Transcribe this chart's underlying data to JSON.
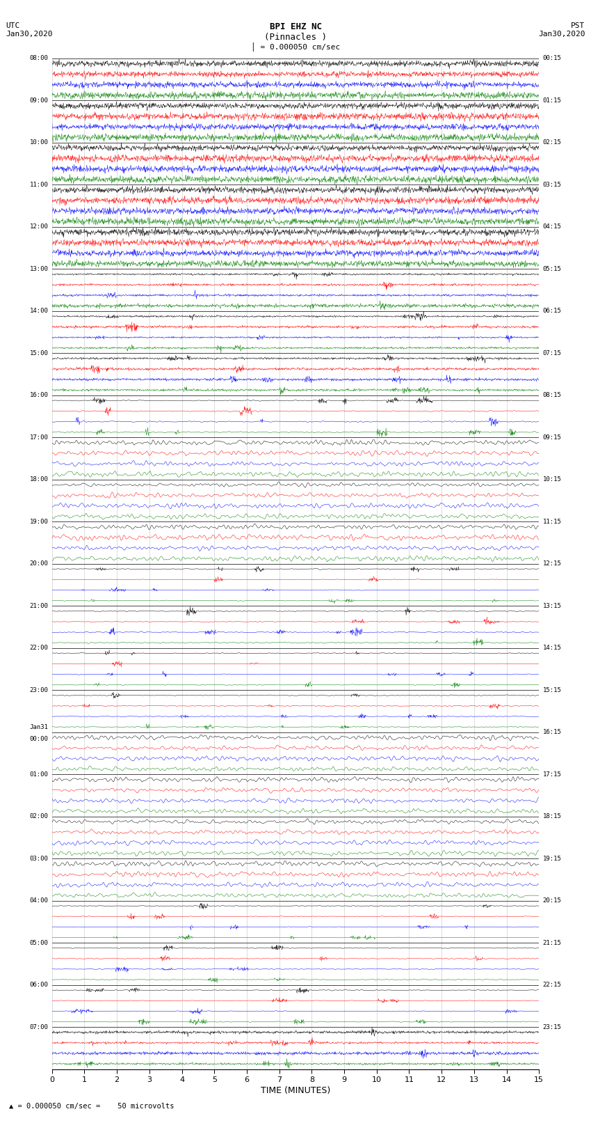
{
  "title_line1": "BPI EHZ NC",
  "title_line2": "(Pinnacles )",
  "scale_label": "= 0.000050 cm/sec",
  "footer_label": "= 0.000050 cm/sec =    50 microvolts",
  "utc_label": "UTC\nJan30,2020",
  "pst_label": "PST\nJan30,2020",
  "xlabel": "TIME (MINUTES)",
  "bg_color": "#ffffff",
  "trace_colors": [
    "#000000",
    "#ff0000",
    "#0000ff",
    "#008000"
  ],
  "utc_times_left": [
    "08:00",
    "09:00",
    "10:00",
    "11:00",
    "12:00",
    "13:00",
    "14:00",
    "15:00",
    "16:00",
    "17:00",
    "18:00",
    "19:00",
    "20:00",
    "21:00",
    "22:00",
    "23:00",
    "Jan31\n00:00",
    "01:00",
    "02:00",
    "03:00",
    "04:00",
    "05:00",
    "06:00",
    "07:00"
  ],
  "pst_times_right": [
    "00:15",
    "01:15",
    "02:15",
    "03:15",
    "04:15",
    "05:15",
    "06:15",
    "07:15",
    "08:15",
    "09:15",
    "10:15",
    "11:15",
    "12:15",
    "13:15",
    "14:15",
    "15:15",
    "16:15",
    "17:15",
    "18:15",
    "19:15",
    "20:15",
    "21:15",
    "22:15",
    "23:15"
  ],
  "n_rows": 24,
  "n_traces_per_row": 4,
  "minutes": 15,
  "samples_per_row": 1500,
  "noise_scales": [
    10.0,
    10.0,
    10.0,
    10.0,
    10.0,
    6.0,
    4.0,
    2.0,
    0.6,
    0.4,
    0.3,
    0.3,
    0.5,
    0.8,
    0.4,
    0.3,
    0.15,
    0.15,
    0.15,
    0.15,
    0.15,
    0.15,
    0.5,
    10.0
  ],
  "event_rows": [
    5,
    6,
    7,
    8,
    12,
    13,
    14,
    15,
    20,
    21,
    22,
    23
  ],
  "grid_color": "#000000",
  "grid_lw": 0.5
}
